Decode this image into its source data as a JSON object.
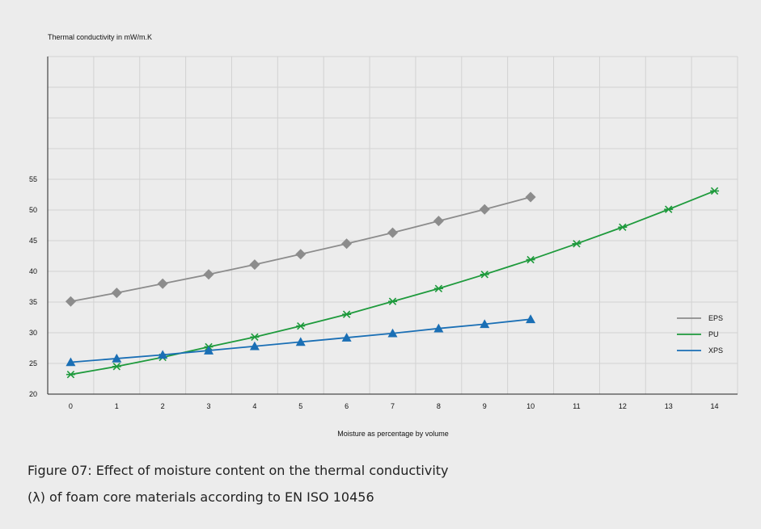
{
  "chart_data": {
    "type": "line",
    "ylabel": "Thermal conductivity in mW/m.K",
    "xlabel": "Moisture as percentage by volume",
    "categories": [
      "0",
      "1",
      "2",
      "3",
      "4",
      "5",
      "6",
      "7",
      "8",
      "9",
      "10",
      "11",
      "12",
      "13",
      "14"
    ],
    "yticks": [
      "20",
      "25",
      "30",
      "35",
      "40",
      "45",
      "50",
      "55"
    ],
    "ylim": [
      20,
      75
    ],
    "grid": true,
    "legend_position": "right",
    "series": [
      {
        "name": "EPS",
        "color": "#8c8c8c",
        "marker": "diamond",
        "x": [
          0,
          1,
          2,
          3,
          4,
          5,
          6,
          7,
          8,
          9,
          10
        ],
        "values": [
          35.1,
          36.5,
          38.0,
          39.5,
          41.1,
          42.8,
          44.5,
          46.3,
          48.2,
          50.1,
          52.1
        ]
      },
      {
        "name": "PU",
        "color": "#1e9a3c",
        "marker": "asterisk",
        "x": [
          0,
          1,
          2,
          3,
          4,
          5,
          6,
          7,
          8,
          9,
          10,
          11,
          12,
          13,
          14
        ],
        "values": [
          23.2,
          24.5,
          26.0,
          27.7,
          29.3,
          31.1,
          33.0,
          35.1,
          37.2,
          39.5,
          41.9,
          44.5,
          47.2,
          50.1,
          53.1
        ]
      },
      {
        "name": "XPS",
        "color": "#1a6fb5",
        "marker": "triangle",
        "x": [
          0,
          1,
          2,
          3,
          4,
          5,
          6,
          7,
          8,
          9,
          10
        ],
        "values": [
          25.2,
          25.8,
          26.4,
          27.1,
          27.8,
          28.5,
          29.2,
          29.9,
          30.7,
          31.4,
          32.2
        ]
      }
    ]
  },
  "caption": {
    "line1": "Figure 07: Effect of moisture content on the thermal conductivity",
    "line2": "(λ) of foam core materials according to EN ISO 10456"
  }
}
